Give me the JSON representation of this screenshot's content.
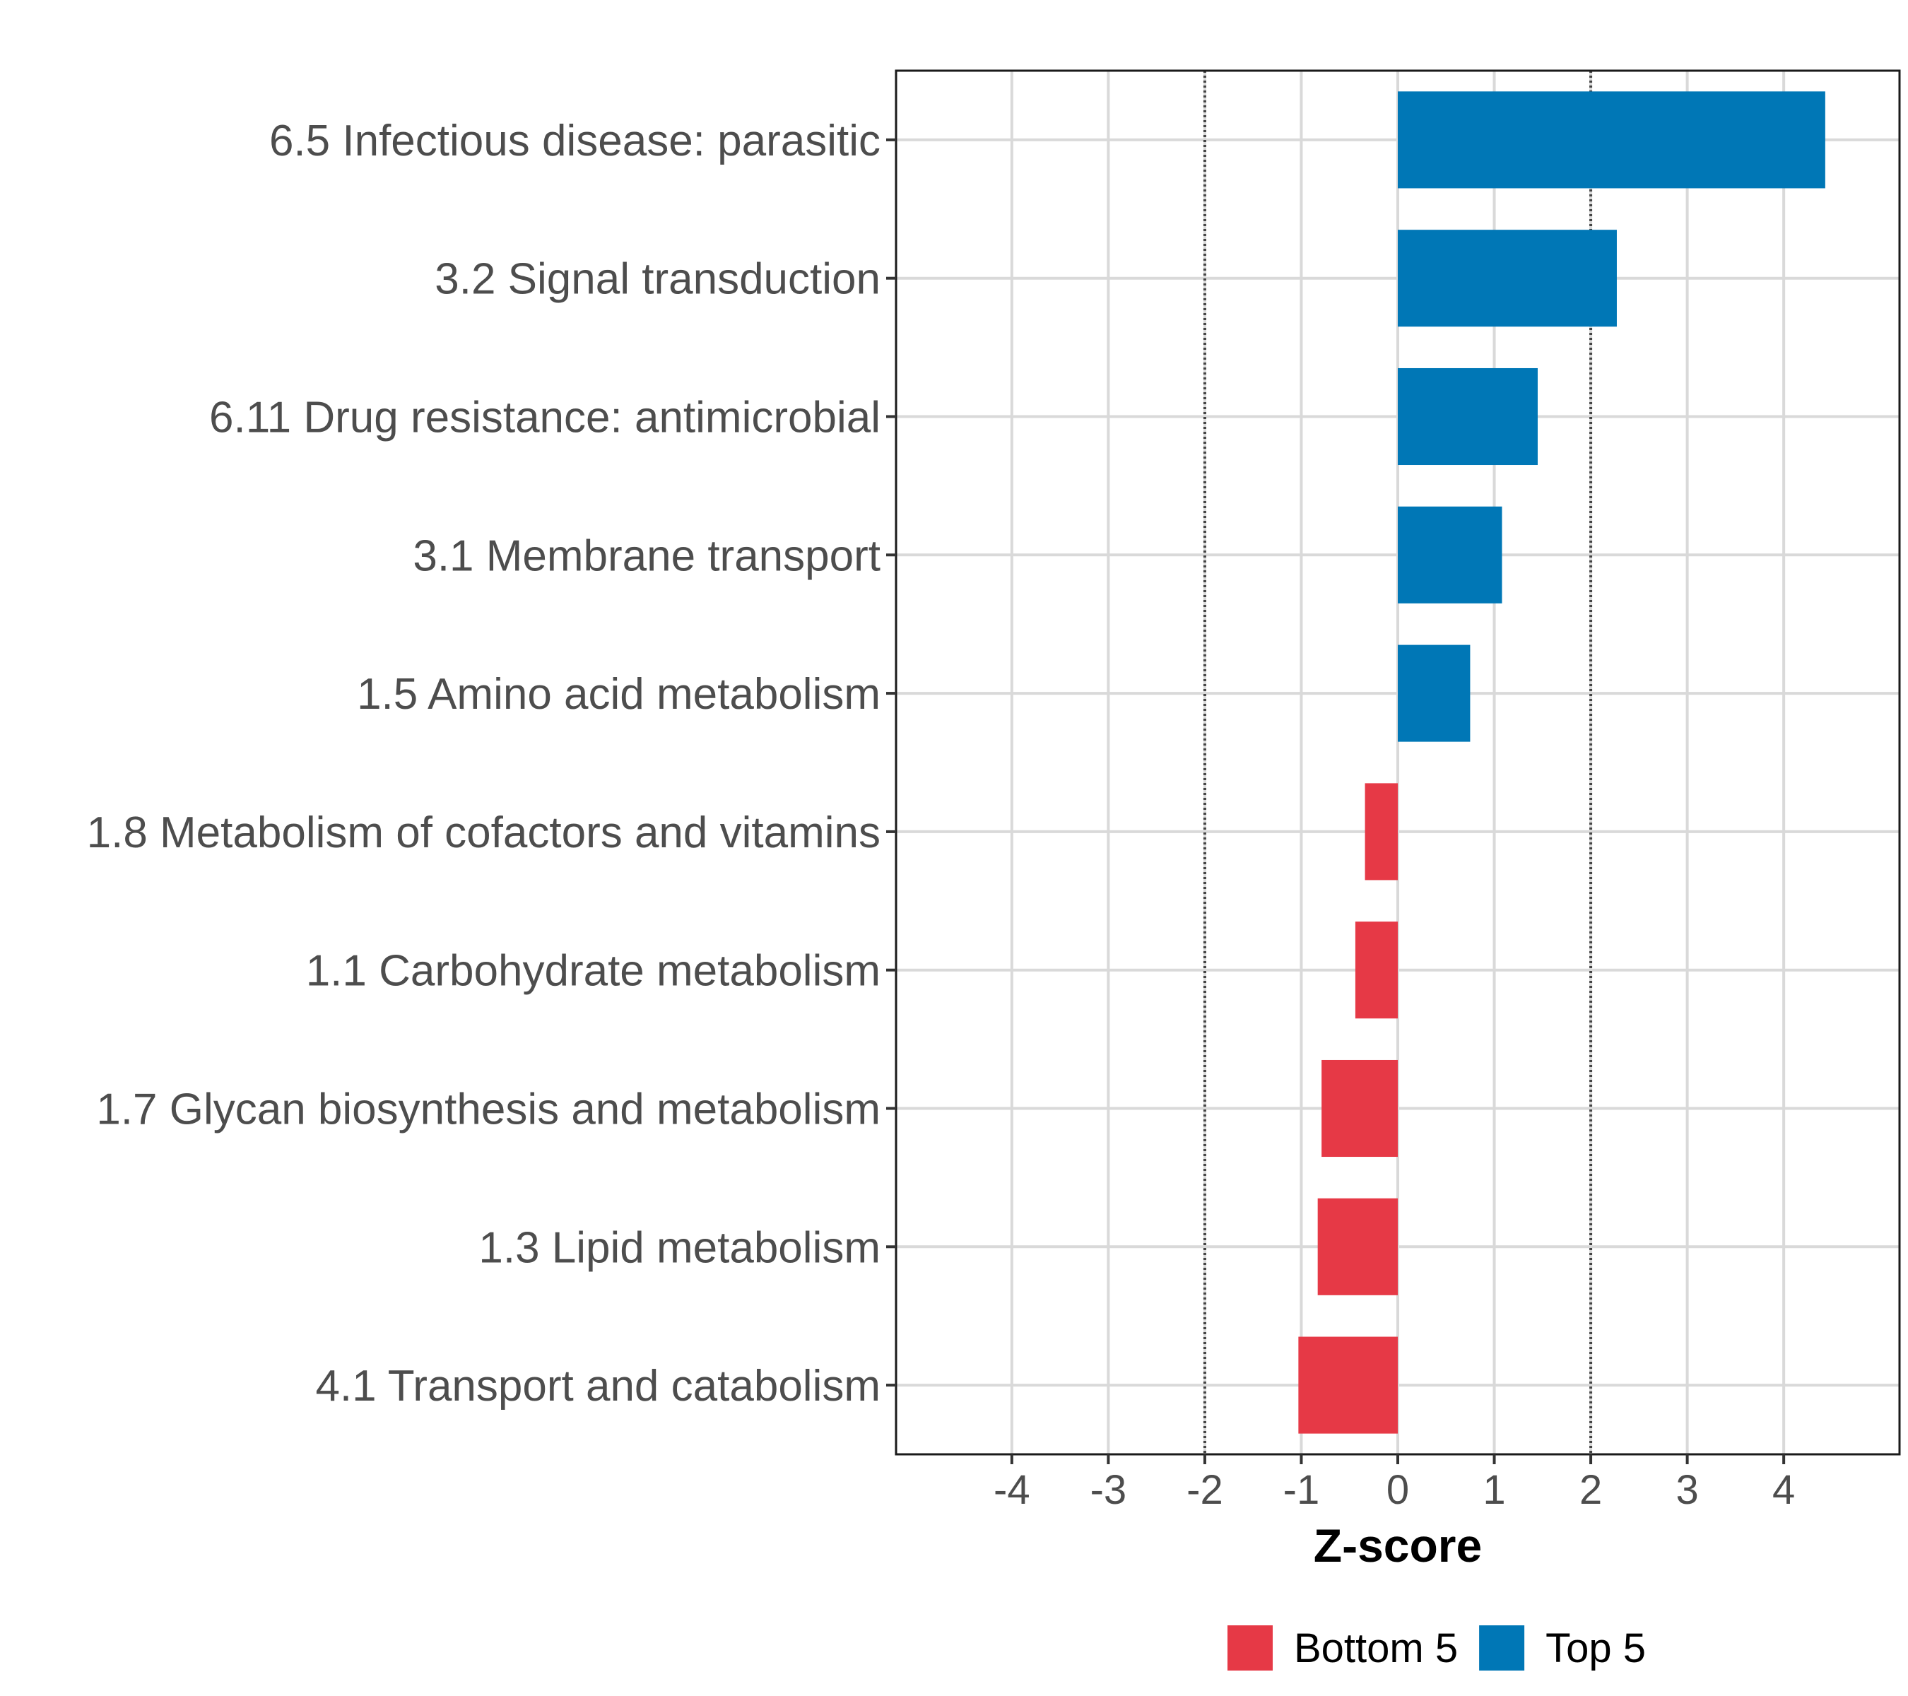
{
  "chart_data": {
    "type": "bar",
    "orientation": "horizontal",
    "title": "",
    "xlabel": "Z-score",
    "ylabel": "",
    "xlim": [
      -5.2,
      5.2
    ],
    "xticks": [
      -4,
      -3,
      -2,
      -1,
      0,
      1,
      2,
      3,
      4
    ],
    "xtick_labels": [
      "-4",
      "-3",
      "-2",
      "-1",
      "0",
      "1",
      "2",
      "3",
      "4"
    ],
    "reference_lines": [
      -2,
      2
    ],
    "grid": true,
    "categories": [
      "6.5 Infectious disease: parasitic",
      "3.2 Signal transduction",
      "6.11 Drug resistance: antimicrobial",
      "3.1 Membrane transport",
      "1.5 Amino acid metabolism",
      "1.8 Metabolism of cofactors and vitamins",
      "1.1 Carbohydrate metabolism",
      "1.7 Glycan biosynthesis and metabolism",
      "1.3 Lipid metabolism",
      "4.1 Transport and catabolism"
    ],
    "values": [
      4.43,
      2.27,
      1.45,
      1.08,
      0.75,
      -0.34,
      -0.44,
      -0.79,
      -0.83,
      -1.03
    ],
    "groups": [
      "Top 5",
      "Top 5",
      "Top 5",
      "Top 5",
      "Top 5",
      "Bottom 5",
      "Bottom 5",
      "Bottom 5",
      "Bottom 5",
      "Bottom 5"
    ],
    "legend": {
      "position": "bottom",
      "entries": [
        {
          "label": "Bottom 5",
          "color": "#e63946"
        },
        {
          "label": "Top 5",
          "color": "#0077b6"
        }
      ]
    }
  }
}
